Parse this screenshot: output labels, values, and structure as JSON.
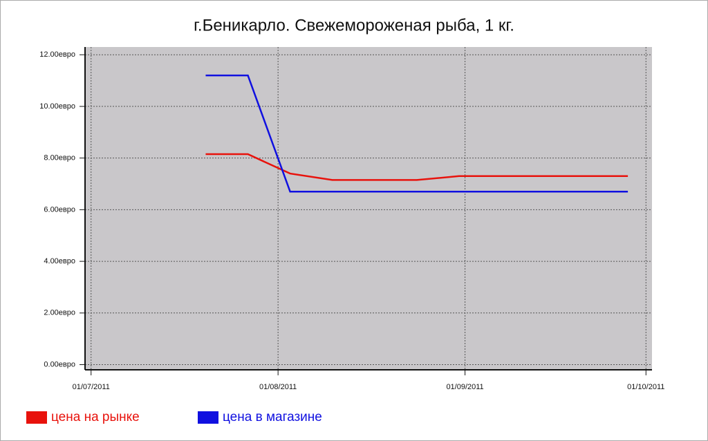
{
  "chart_data": {
    "type": "line",
    "title": "г.Беникарло. Свежемороженая рыба, 1 кг.",
    "x": [
      "2011-07-20",
      "2011-07-27",
      "2011-08-03",
      "2011-08-10",
      "2011-08-17",
      "2011-08-24",
      "2011-08-31",
      "2011-09-07",
      "2011-09-14",
      "2011-09-21",
      "2011-09-28"
    ],
    "series": [
      {
        "name": "цена на рынке",
        "color": "#e8120c",
        "values": [
          8.15,
          8.15,
          7.4,
          7.15,
          7.15,
          7.15,
          7.3,
          7.3,
          7.3,
          7.3,
          7.3
        ]
      },
      {
        "name": "цена в магазине",
        "color": "#1010e0",
        "values": [
          11.2,
          11.2,
          6.7,
          6.7,
          6.7,
          6.7,
          6.7,
          6.7,
          6.7,
          6.7,
          6.7
        ]
      }
    ],
    "xlim": [
      "2011-06-30",
      "2011-10-02"
    ],
    "xticks": [
      {
        "value": "2011-07-01",
        "label": "01/07/2011"
      },
      {
        "value": "2011-08-01",
        "label": "01/08/2011"
      },
      {
        "value": "2011-09-01",
        "label": "01/09/2011"
      },
      {
        "value": "2011-10-01",
        "label": "01/10/2011"
      }
    ],
    "ylim": [
      -0.2,
      12.3
    ],
    "yticks": [
      {
        "value": 0,
        "label": "0.00евро"
      },
      {
        "value": 2,
        "label": "2.00евро"
      },
      {
        "value": 4,
        "label": "4.00евро"
      },
      {
        "value": 6,
        "label": "6.00евро"
      },
      {
        "value": 8,
        "label": "8.00евро"
      },
      {
        "value": 10,
        "label": "10.00евро"
      },
      {
        "value": 12,
        "label": "12.00евро"
      }
    ],
    "grid": true
  }
}
